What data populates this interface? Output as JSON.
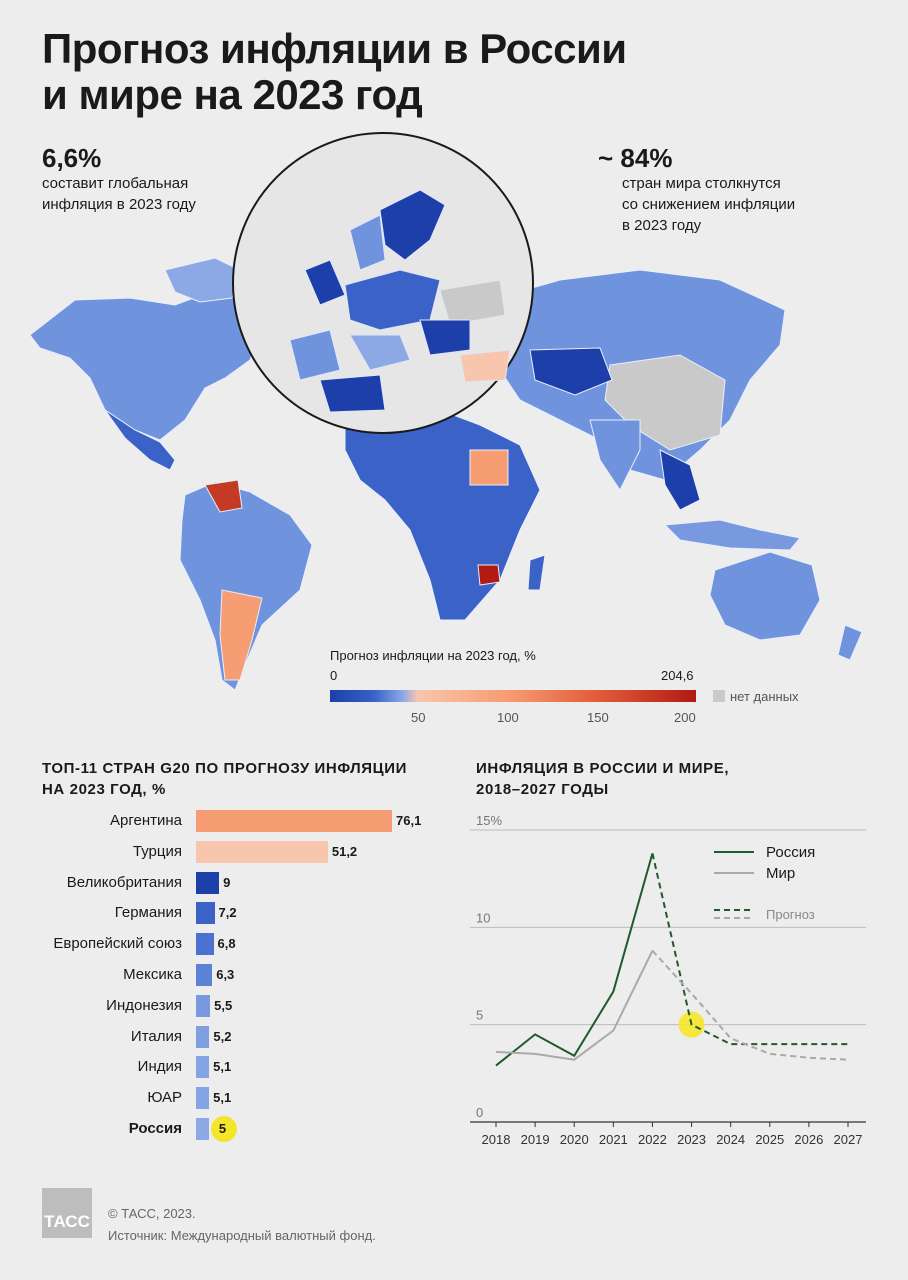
{
  "title": "Прогноз инфляции в России\nи мире на 2023 год",
  "title_line1": "Прогноз инфляции в России",
  "title_line2": "и мире на 2023 год",
  "stat_left": {
    "value": "6,6%",
    "text": "составит глобальная\nинфляция в 2023 году"
  },
  "stat_right": {
    "value": "~ 84%",
    "text": "стран мира столкнутся\nсо снижением инфляции\nв 2023 году"
  },
  "map_legend": {
    "title": "Прогноз инфляции на 2023 год, %",
    "min": "0",
    "max": "204,6",
    "ticks": [
      "50",
      "100",
      "150",
      "200"
    ],
    "no_data": "нет данных"
  },
  "colors": {
    "low": "#1c3faa",
    "mid_blue": "#6b8fd8",
    "light_blue": "#9db5ea",
    "salmon": "#f79d73",
    "light_salmon": "#f8c6ad",
    "high": "#b21a12",
    "no_data": "#c9c9c9",
    "russia_line": "#1f5a2c",
    "world_line": "#a9a9a9",
    "highlight": "#f5e52a"
  },
  "bar_section_title": "ТОП-11 стран G20 по прогнозу инфляции\nна 2023 год, %",
  "line_section_title": "Инфляция в России и мире,\n2018–2027 годы",
  "chart_data": [
    {
      "type": "bar",
      "orientation": "horizontal",
      "title": "ТОП-11 стран G20 по прогнозу инфляции на 2023 год, %",
      "categories": [
        "Аргентина",
        "Турция",
        "Великобритания",
        "Германия",
        "Европейский союз",
        "Мексика",
        "Индонезия",
        "Италия",
        "Индия",
        "ЮАР",
        "Россия"
      ],
      "values": [
        76.1,
        51.2,
        9,
        7.2,
        6.8,
        6.3,
        5.5,
        5.2,
        5.1,
        5.1,
        5
      ],
      "value_labels": [
        "76,1",
        "51,2",
        "9",
        "7,2",
        "6,8",
        "6,3",
        "5,5",
        "5,2",
        "5,1",
        "5,1",
        "5"
      ],
      "colors": [
        "#f79d73",
        "#f8c6ad",
        "#1c3faa",
        "#3b63c6",
        "#4b72cf",
        "#5c82d6",
        "#7899df",
        "#7f9fe1",
        "#86a4e3",
        "#86a4e3",
        "#8ca9e5"
      ],
      "highlight": "Россия"
    },
    {
      "type": "line",
      "title": "Инфляция в России и мире, 2018–2027 годы",
      "x": [
        2018,
        2019,
        2020,
        2021,
        2022,
        2023,
        2024,
        2025,
        2026,
        2027
      ],
      "x_labels": [
        "2018",
        "2019",
        "2020",
        "2021",
        "2022",
        "2023",
        "2024",
        "2025",
        "2026",
        "2027"
      ],
      "y_ticks": [
        "0",
        "5",
        "10",
        "15%"
      ],
      "ylim": [
        0,
        15
      ],
      "forecast_from": 2022,
      "series": [
        {
          "name": "Россия",
          "values": [
            2.9,
            4.5,
            3.4,
            6.7,
            13.8,
            5.0,
            4.0,
            4.0,
            4.0,
            4.0
          ]
        },
        {
          "name": "Мир",
          "values": [
            3.6,
            3.5,
            3.2,
            4.7,
            8.8,
            6.6,
            4.3,
            3.5,
            3.3,
            3.2
          ]
        }
      ],
      "legend": {
        "russia": "Россия",
        "world": "Мир",
        "forecast": "Прогноз"
      },
      "highlight_point": {
        "x": 2023,
        "y": 5.0
      }
    }
  ],
  "credit": {
    "logo": "ТАСС",
    "copyright": "© ТАСС, 2023.",
    "source": "Источник: Международный валютный фонд."
  }
}
